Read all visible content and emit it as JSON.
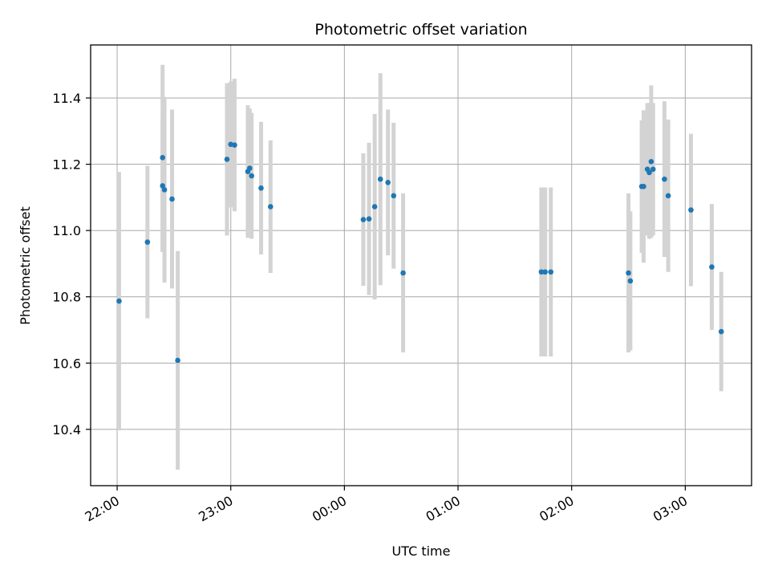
{
  "chart_data": {
    "type": "scatter",
    "title": "Photometric offset variation",
    "xlabel": "UTC time",
    "ylabel": "Photometric offset",
    "x_ticks": [
      "22:00",
      "23:00",
      "00:00",
      "01:00",
      "02:00",
      "03:00"
    ],
    "y_ticks": [
      "10.4",
      "10.6",
      "10.8",
      "11.0",
      "11.2",
      "11.4"
    ],
    "y_tick_values": [
      10.4,
      10.6,
      10.8,
      11.0,
      11.2,
      11.4
    ],
    "xlim": [
      "21:46",
      "03:35"
    ],
    "ylim": [
      10.23,
      11.56
    ],
    "grid": true,
    "colors": {
      "points": "#1f77b4",
      "errorbars": "#d3d3d3",
      "grid": "#b0b0b0"
    },
    "series": [
      {
        "points": [
          {
            "x": "22:01",
            "y": 10.787,
            "yerr": 0.39
          },
          {
            "x": "22:16",
            "y": 10.965,
            "yerr": 0.23
          },
          {
            "x": "22:24",
            "y": 11.22,
            "yerr": 0.28
          },
          {
            "x": "22:24",
            "y": 11.135,
            "yerr": 0.2
          },
          {
            "x": "22:25",
            "y": 11.123,
            "yerr": 0.28
          },
          {
            "x": "22:29",
            "y": 11.095,
            "yerr": 0.27
          },
          {
            "x": "22:32",
            "y": 10.608,
            "yerr": 0.33
          },
          {
            "x": "22:58",
            "y": 11.215,
            "yerr": 0.23
          },
          {
            "x": "23:00",
            "y": 11.26,
            "yerr": 0.19
          },
          {
            "x": "23:02",
            "y": 11.258,
            "yerr": 0.2
          },
          {
            "x": "23:09",
            "y": 11.178,
            "yerr": 0.2
          },
          {
            "x": "23:10",
            "y": 11.188,
            "yerr": 0.18
          },
          {
            "x": "23:11",
            "y": 11.165,
            "yerr": 0.19
          },
          {
            "x": "23:16",
            "y": 11.128,
            "yerr": 0.2
          },
          {
            "x": "23:21",
            "y": 11.072,
            "yerr": 0.2
          },
          {
            "x": "00:10",
            "y": 11.033,
            "yerr": 0.2
          },
          {
            "x": "00:13",
            "y": 11.035,
            "yerr": 0.23
          },
          {
            "x": "00:16",
            "y": 11.072,
            "yerr": 0.28
          },
          {
            "x": "00:19",
            "y": 11.155,
            "yerr": 0.32
          },
          {
            "x": "00:23",
            "y": 11.145,
            "yerr": 0.22
          },
          {
            "x": "00:26",
            "y": 11.105,
            "yerr": 0.22
          },
          {
            "x": "00:31",
            "y": 10.872,
            "yerr": 0.24
          },
          {
            "x": "01:44",
            "y": 10.875,
            "yerr": 0.255
          },
          {
            "x": "01:46",
            "y": 10.875,
            "yerr": 0.255
          },
          {
            "x": "01:49",
            "y": 10.875,
            "yerr": 0.255
          },
          {
            "x": "02:30",
            "y": 10.872,
            "yerr": 0.24
          },
          {
            "x": "02:31",
            "y": 10.848,
            "yerr": 0.21
          },
          {
            "x": "02:37",
            "y": 11.133,
            "yerr": 0.2
          },
          {
            "x": "02:38",
            "y": 11.133,
            "yerr": 0.23
          },
          {
            "x": "02:40",
            "y": 11.185,
            "yerr": 0.2
          },
          {
            "x": "02:41",
            "y": 11.175,
            "yerr": 0.2
          },
          {
            "x": "02:42",
            "y": 11.208,
            "yerr": 0.23
          },
          {
            "x": "02:43",
            "y": 11.185,
            "yerr": 0.2
          },
          {
            "x": "02:49",
            "y": 11.155,
            "yerr": 0.235
          },
          {
            "x": "02:51",
            "y": 11.105,
            "yerr": 0.23
          },
          {
            "x": "03:03",
            "y": 11.062,
            "yerr": 0.23
          },
          {
            "x": "03:14",
            "y": 10.89,
            "yerr": 0.19
          },
          {
            "x": "03:19",
            "y": 10.695,
            "yerr": 0.18
          }
        ]
      }
    ]
  }
}
